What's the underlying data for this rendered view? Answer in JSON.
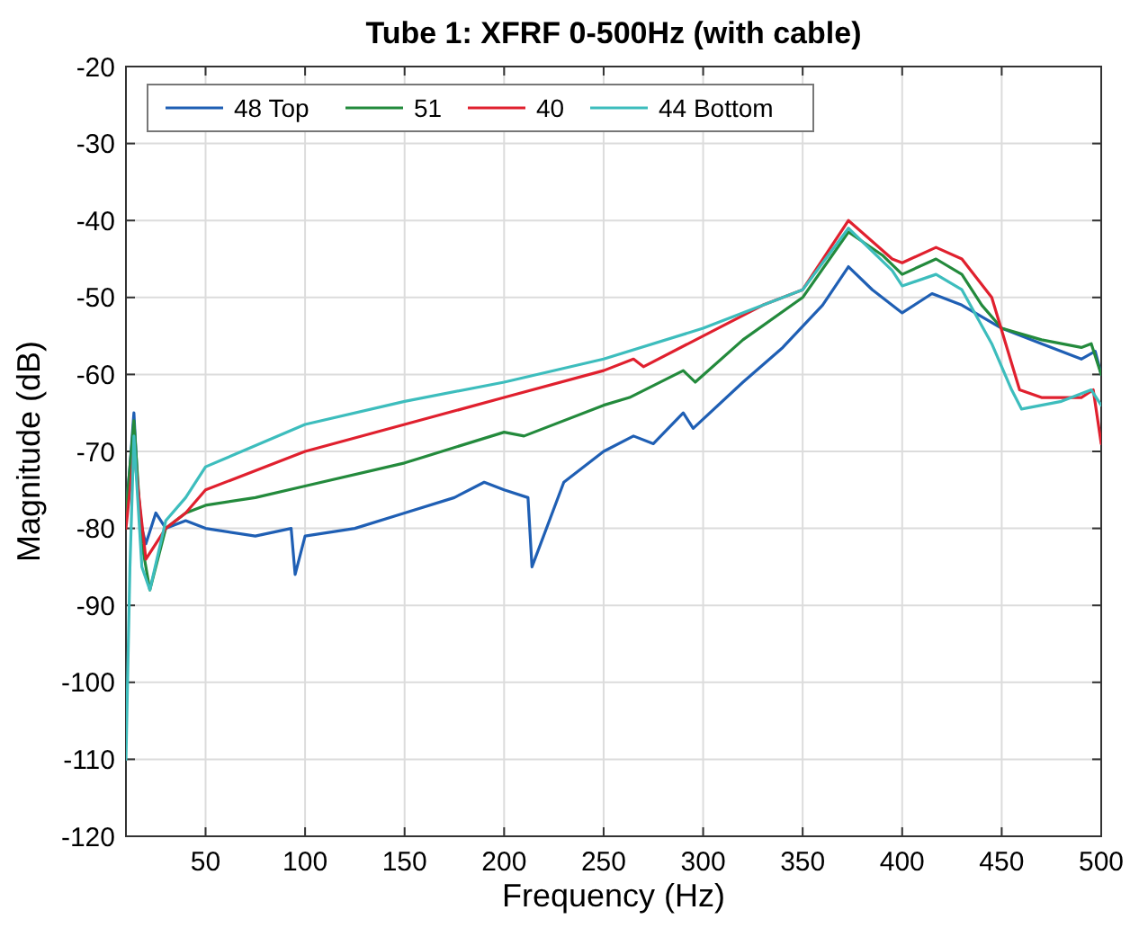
{
  "chart_data": {
    "type": "line",
    "title": "Tube 1: XFRF 0-500Hz (with cable)",
    "xlabel": "Frequency (Hz)",
    "ylabel": "Magnitude (dB)",
    "xlim": [
      10,
      500
    ],
    "ylim": [
      -120,
      -20
    ],
    "xticks": [
      50,
      100,
      150,
      200,
      250,
      300,
      350,
      400,
      450,
      500
    ],
    "yticks": [
      -120,
      -110,
      -100,
      -90,
      -80,
      -70,
      -60,
      -50,
      -40,
      -30,
      -20
    ],
    "grid": true,
    "legend": "top left",
    "line_style": "solid",
    "series": [
      {
        "name": "48 Top",
        "color": "#1f5fb4",
        "x": [
          10,
          12,
          14,
          16,
          18,
          20,
          25,
          30,
          40,
          50,
          75,
          93,
          95,
          100,
          125,
          150,
          175,
          190,
          200,
          212,
          214,
          230,
          250,
          265,
          275,
          290,
          295,
          320,
          340,
          360,
          373,
          385,
          400,
          415,
          430,
          450,
          470,
          490,
          497,
          500
        ],
        "values": [
          -78,
          -72,
          -65,
          -75,
          -80,
          -82,
          -78,
          -80,
          -79,
          -80,
          -81,
          -80,
          -86,
          -81,
          -80,
          -78,
          -76,
          -74,
          -75,
          -76,
          -85,
          -74,
          -70,
          -68,
          -69,
          -65,
          -67,
          -61,
          -56.5,
          -51,
          -46,
          -49,
          -52,
          -49.5,
          -51,
          -54,
          -56,
          -58,
          -57,
          -60
        ]
      },
      {
        "name": "51",
        "color": "#238a3c",
        "x": [
          10,
          14,
          18,
          22,
          30,
          40,
          50,
          75,
          100,
          150,
          200,
          210,
          250,
          263,
          290,
          296,
          320,
          350,
          373,
          390,
          400,
          417,
          430,
          440,
          450,
          470,
          490,
          495,
          500
        ],
        "values": [
          -78,
          -66,
          -82,
          -88,
          -80,
          -78,
          -77,
          -76,
          -74.5,
          -71.5,
          -67.5,
          -68,
          -64,
          -63,
          -59.5,
          -61,
          -55.5,
          -50,
          -41.5,
          -44.5,
          -47,
          -45,
          -47,
          -51,
          -54,
          -55.5,
          -56.5,
          -56,
          -60
        ]
      },
      {
        "name": "40",
        "color": "#e0202e",
        "x": [
          10,
          14,
          20,
          30,
          40,
          50,
          100,
          150,
          200,
          250,
          265,
          270,
          300,
          330,
          350,
          373,
          395,
          400,
          417,
          430,
          445,
          459,
          470,
          490,
          496,
          500
        ],
        "values": [
          -80,
          -70,
          -84,
          -80,
          -78,
          -75,
          -70,
          -66.5,
          -63,
          -59.5,
          -58,
          -59,
          -55,
          -51,
          -49,
          -40,
          -45,
          -45.5,
          -43.5,
          -45,
          -50,
          -62,
          -63,
          -63,
          -62,
          -69
        ]
      },
      {
        "name": "44 Bottom",
        "color": "#3dbdbd",
        "x": [
          10,
          12,
          14,
          18,
          22,
          30,
          40,
          50,
          100,
          150,
          200,
          250,
          300,
          350,
          373,
          395,
          400,
          417,
          430,
          445,
          455,
          460,
          480,
          495,
          500
        ],
        "values": [
          -110,
          -85,
          -68,
          -85,
          -88,
          -79,
          -76,
          -72,
          -66.5,
          -63.5,
          -61,
          -58,
          -54,
          -49,
          -41,
          -46.5,
          -48.5,
          -47,
          -49,
          -56,
          -62,
          -64.5,
          -63.5,
          -62,
          -64
        ]
      }
    ]
  }
}
